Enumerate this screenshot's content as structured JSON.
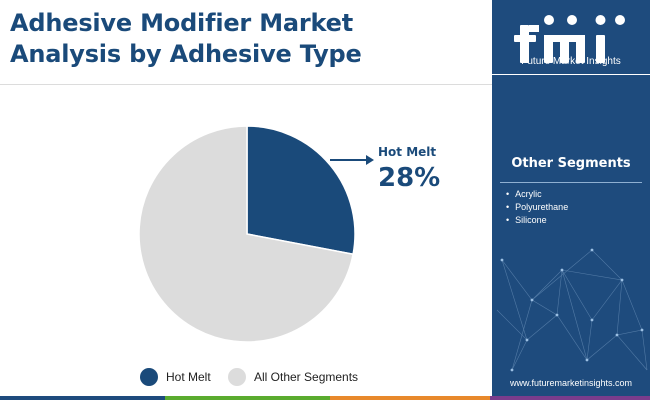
{
  "header": {
    "title_line1": "Adhesive Modifier Market",
    "title_line2": "Analysis by Adhesive Type"
  },
  "chart_data": {
    "type": "pie",
    "slices": [
      {
        "label": "Hot Melt",
        "value": 28,
        "color": "#1a4a7a"
      },
      {
        "label": "All Other Segments",
        "value": 72,
        "color": "#dcdcdc"
      }
    ],
    "callout": {
      "label": "Hot Melt",
      "value_text": "28%"
    },
    "legend": [
      "Hot Melt",
      "All Other Segments"
    ],
    "legend_position": "bottom"
  },
  "sidebar": {
    "brand_text": "Future Market Insights",
    "segments_title": "Other Segments",
    "segments": [
      "Acrylic",
      "Polyurethane",
      "Silicone"
    ],
    "website": "www.futuremarketinsights.com"
  },
  "colors": {
    "accent": "#1a4a7a",
    "sidebar_bg": "#1e4b7d",
    "other": "#dcdcdc",
    "bottom_bar": [
      "#1e4b7d",
      "#5aab2e",
      "#e8892b",
      "#7a3c8c"
    ]
  }
}
